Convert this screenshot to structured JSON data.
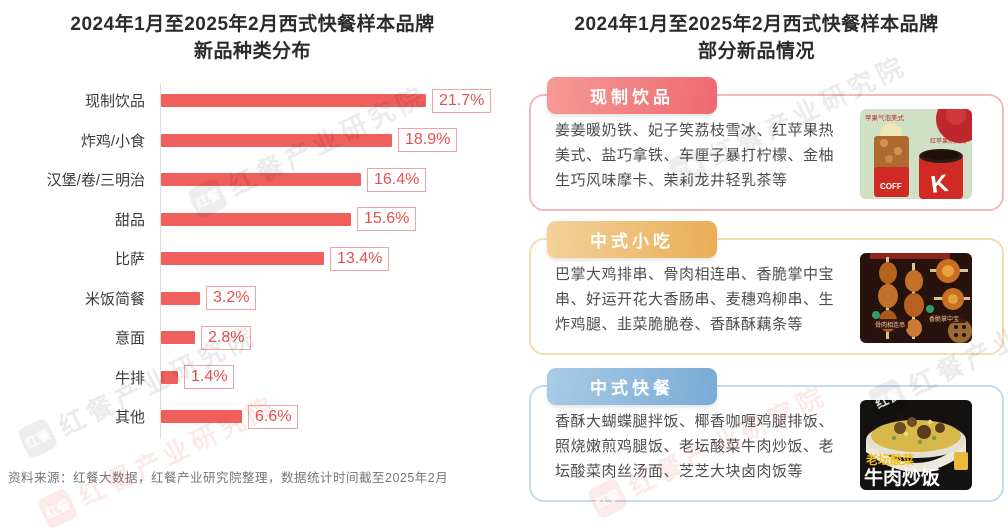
{
  "page": {
    "left_title_line1": "2024年1月至2025年2月西式快餐样本品牌",
    "left_title_line2": "新品种类分布",
    "right_title_line1": "2024年1月至2025年2月西式快餐样本品牌",
    "right_title_line2": "部分新品情况",
    "footer_source": "资料来源：红餐大数据，红餐产业研究院整理，数据统计时间截至2025年2月"
  },
  "chart_data": {
    "type": "bar",
    "orientation": "horizontal",
    "title": "2024年1月至2025年2月西式快餐样本品牌新品种类分布",
    "categories": [
      "现制饮品",
      "炸鸡/小食",
      "汉堡/卷/三明治",
      "甜品",
      "比萨",
      "米饭简餐",
      "意面",
      "牛排",
      "其他"
    ],
    "values": [
      21.7,
      18.9,
      16.4,
      15.6,
      13.4,
      3.2,
      2.8,
      1.4,
      6.6
    ],
    "value_labels": [
      "21.7%",
      "18.9%",
      "16.4%",
      "15.6%",
      "13.4%",
      "3.2%",
      "2.8%",
      "1.4%",
      "6.6%"
    ],
    "xlim": [
      0,
      22
    ],
    "grid": false,
    "legend": false,
    "bar_color": "#f15f5c",
    "value_text_color": "#e4504f",
    "value_box_border_color": "#f0a3a2"
  },
  "right_panel": {
    "cards": [
      {
        "header": "现制饮品",
        "body": "姜姜暖奶铁、妃子笑荔枝雪冰、红苹果热美式、盐巧拿铁、车厘子暴打柠檬、金柚生巧风味摩卡、茉莉龙井轻乳茶等",
        "accent": {
          "border": "#f3babc",
          "tab_from": "#f69a96",
          "tab_to": "#ee6a6f"
        },
        "image_labels": {
          "caption_top": "苹果气泡美式",
          "caption_side": "红苹果热美式",
          "cup_text": "COFF",
          "brand_letter": "K"
        }
      },
      {
        "header": "中式小吃",
        "body": "巴掌大鸡排串、骨肉相连串、香脆掌中宝串、好运开花大香肠串、麦穗鸡柳串、生炸鸡腿、韭菜脆脆卷、香酥酥藕条等",
        "accent": {
          "border": "#f5ddb2",
          "tab_from": "#f3d29a",
          "tab_to": "#e9ad55"
        },
        "image_labels": {
          "tag_left": "骨肉相连串",
          "tag_right": "香脆掌中宝"
        }
      },
      {
        "header": "中式快餐",
        "body": "香酥大蝴蝶腿拌饭、椰香咖喱鸡腿排饭、照烧嫩煎鸡腿饭、老坛酸菜牛肉炒饭、老坛酸菜肉丝汤面、芝芝大块卤肉饭等",
        "accent": {
          "border": "#c2dcee",
          "tab_from": "#a9cbe6",
          "tab_to": "#78abd5"
        },
        "image_labels": {
          "caption_line1": "老坛酸菜",
          "caption_line2": "牛肉炒饭"
        }
      }
    ]
  },
  "watermark": {
    "text": "红餐产业研究院",
    "logo_text": "红餐"
  }
}
